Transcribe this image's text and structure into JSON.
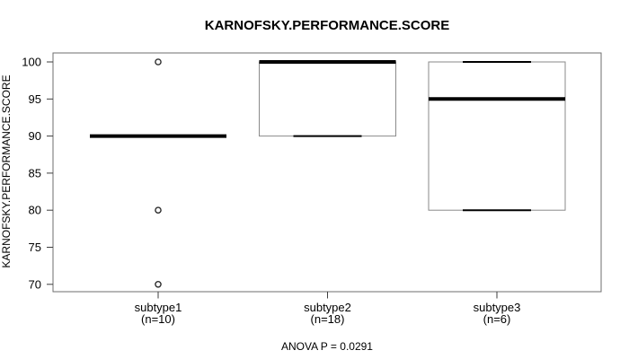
{
  "chart_data": {
    "type": "boxplot",
    "title": "KARNOFSKY.PERFORMANCE.SCORE",
    "ylabel": "KARNOFSKY.PERFORMANCE.SCORE",
    "xlabel": "",
    "footer": "ANOVA P = 0.0291",
    "y_ticks": [
      70,
      75,
      80,
      85,
      90,
      95,
      100
    ],
    "ylim": [
      69,
      101.2
    ],
    "grid": false,
    "legend": "none",
    "groups": [
      {
        "label": "subtype1",
        "n_label": "(n=10)",
        "n": 10,
        "median": 90,
        "q1": 90,
        "q3": 90,
        "whisker_low": 90,
        "whisker_high": 90,
        "outliers": [
          100,
          80,
          70
        ]
      },
      {
        "label": "subtype2",
        "n_label": "(n=18)",
        "n": 18,
        "median": 100,
        "q1": 90,
        "q3": 100,
        "whisker_low": 90,
        "whisker_high": 100,
        "outliers": []
      },
      {
        "label": "subtype3",
        "n_label": "(n=6)",
        "n": 6,
        "median": 95,
        "q1": 80,
        "q3": 100,
        "whisker_low": 80,
        "whisker_high": 100,
        "outliers": []
      }
    ],
    "colors": {
      "background": "#ffffff",
      "text": "#000000",
      "frame": "#6e6e6e",
      "tick": "#3d3d3d",
      "box_border": "#8a8a8a",
      "median": "#000000",
      "staple": "#000000",
      "outlier_stroke": "#2b2b2b",
      "outlier_fill": "#ffffff"
    }
  }
}
